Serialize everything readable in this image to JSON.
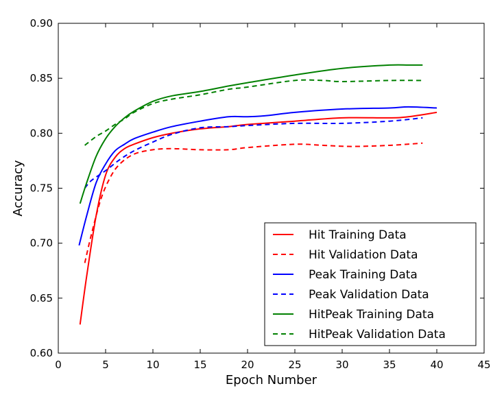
{
  "chart_data": {
    "type": "line",
    "title": "",
    "xlabel": "Epoch Number",
    "ylabel": "Accuracy",
    "xlim": [
      0,
      45
    ],
    "ylim": [
      0.6,
      0.9
    ],
    "x_ticks": [
      0,
      5,
      10,
      15,
      20,
      25,
      30,
      35,
      40,
      45
    ],
    "y_ticks": [
      0.6,
      0.65,
      0.7,
      0.75,
      0.8,
      0.85,
      0.9
    ],
    "x_tick_labels": [
      "0",
      "5",
      "10",
      "15",
      "20",
      "25",
      "30",
      "35",
      "40",
      "45"
    ],
    "y_tick_labels": [
      "0.60",
      "0.65",
      "0.70",
      "0.75",
      "0.80",
      "0.85",
      "0.90"
    ],
    "grid": false,
    "legend_position": "lower-right",
    "series": [
      {
        "name": "Hit Training Data",
        "color": "#ff0000",
        "dash": "solid",
        "x": [
          2.3,
          3,
          4,
          5,
          6,
          7,
          8,
          10,
          12,
          15,
          18,
          20,
          25,
          30,
          35,
          37,
          40
        ],
        "y": [
          0.626,
          0.67,
          0.725,
          0.762,
          0.778,
          0.786,
          0.79,
          0.796,
          0.8,
          0.804,
          0.806,
          0.808,
          0.811,
          0.814,
          0.814,
          0.815,
          0.819
        ]
      },
      {
        "name": "Hit Validation Data",
        "color": "#ff0000",
        "dash": "dashed",
        "x": [
          2.8,
          3.5,
          4.5,
          5.5,
          6.5,
          8,
          10,
          12,
          15,
          18,
          20,
          25,
          28,
          31,
          35,
          38.5
        ],
        "y": [
          0.682,
          0.708,
          0.74,
          0.76,
          0.772,
          0.781,
          0.785,
          0.786,
          0.785,
          0.785,
          0.787,
          0.79,
          0.789,
          0.788,
          0.789,
          0.791
        ]
      },
      {
        "name": "Peak Training Data",
        "color": "#0000ff",
        "dash": "solid",
        "x": [
          2.2,
          3,
          4,
          5,
          6,
          7,
          8,
          10,
          12,
          15,
          18,
          20,
          22,
          25,
          30,
          35,
          37,
          40
        ],
        "y": [
          0.698,
          0.725,
          0.755,
          0.772,
          0.784,
          0.79,
          0.795,
          0.801,
          0.806,
          0.811,
          0.815,
          0.815,
          0.816,
          0.819,
          0.822,
          0.823,
          0.824,
          0.823
        ]
      },
      {
        "name": "Peak Validation Data",
        "color": "#0000ff",
        "dash": "dashed",
        "x": [
          2.8,
          3.5,
          5,
          6.5,
          8,
          10,
          12,
          15,
          18,
          20,
          25,
          30,
          35,
          38.5
        ],
        "y": [
          0.75,
          0.757,
          0.766,
          0.776,
          0.784,
          0.792,
          0.799,
          0.805,
          0.806,
          0.807,
          0.809,
          0.809,
          0.811,
          0.814
        ]
      },
      {
        "name": "HitPeak Training Data",
        "color": "#008000",
        "dash": "solid",
        "x": [
          2.3,
          3,
          4,
          5,
          6,
          7,
          8,
          10,
          12,
          15,
          18,
          20,
          25,
          30,
          35,
          37,
          38.5
        ],
        "y": [
          0.736,
          0.755,
          0.779,
          0.795,
          0.806,
          0.814,
          0.82,
          0.829,
          0.834,
          0.838,
          0.843,
          0.846,
          0.853,
          0.859,
          0.862,
          0.862,
          0.862
        ]
      },
      {
        "name": "HitPeak Validation Data",
        "color": "#008000",
        "dash": "dashed",
        "x": [
          2.8,
          4,
          5,
          6,
          7,
          8,
          10,
          12,
          15,
          18,
          20,
          25,
          28,
          30,
          35,
          38.5
        ],
        "y": [
          0.789,
          0.797,
          0.802,
          0.808,
          0.813,
          0.819,
          0.827,
          0.831,
          0.835,
          0.84,
          0.842,
          0.848,
          0.848,
          0.847,
          0.848,
          0.848
        ]
      }
    ]
  }
}
